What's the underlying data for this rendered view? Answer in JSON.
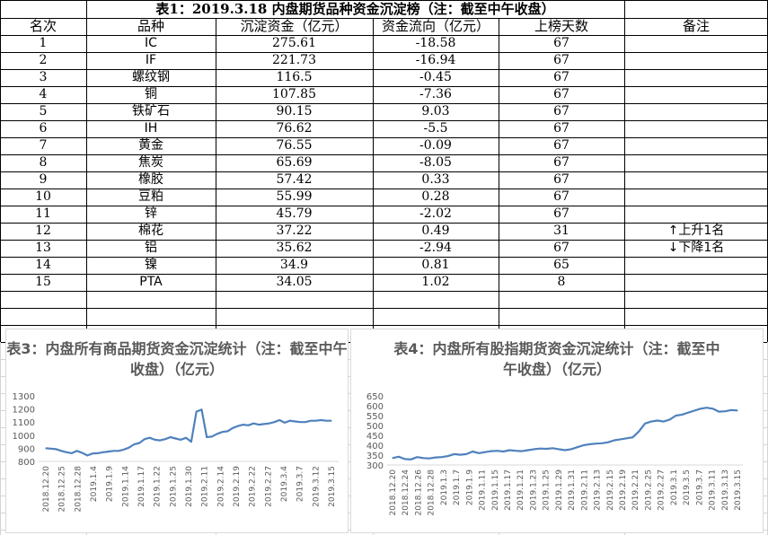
{
  "table": {
    "title": "表1：2019.3.18 内盘期货品种资金沉淀榜（注：截至中午收盘）",
    "headers": [
      "名次",
      "品种",
      "沉淀资金（亿元）",
      "资金流向（亿元）",
      "上榜天数",
      "备注"
    ],
    "rows": [
      {
        "rank": "1",
        "name": "IC",
        "amount": "275.61",
        "flow": "-18.58",
        "days": "67",
        "note": ""
      },
      {
        "rank": "2",
        "name": "IF",
        "amount": "221.73",
        "flow": "-16.94",
        "days": "67",
        "note": ""
      },
      {
        "rank": "3",
        "name": "螺纹钢",
        "amount": "116.5",
        "flow": "-0.45",
        "days": "67",
        "note": ""
      },
      {
        "rank": "4",
        "name": "铜",
        "amount": "107.85",
        "flow": "-7.36",
        "days": "67",
        "note": ""
      },
      {
        "rank": "5",
        "name": "铁矿石",
        "amount": "90.15",
        "flow": "9.03",
        "days": "67",
        "note": ""
      },
      {
        "rank": "6",
        "name": "IH",
        "amount": "76.62",
        "flow": "-5.5",
        "days": "67",
        "note": ""
      },
      {
        "rank": "7",
        "name": "黄金",
        "amount": "76.55",
        "flow": "-0.09",
        "days": "67",
        "note": ""
      },
      {
        "rank": "8",
        "name": "焦炭",
        "amount": "65.69",
        "flow": "-8.05",
        "days": "67",
        "note": ""
      },
      {
        "rank": "9",
        "name": "橡胶",
        "amount": "57.42",
        "flow": "0.33",
        "days": "67",
        "note": ""
      },
      {
        "rank": "10",
        "name": "豆粕",
        "amount": "55.99",
        "flow": "0.28",
        "days": "67",
        "note": ""
      },
      {
        "rank": "11",
        "name": "锌",
        "amount": "45.79",
        "flow": "-2.02",
        "days": "67",
        "note": ""
      },
      {
        "rank": "12",
        "name": "棉花",
        "amount": "37.22",
        "flow": "0.49",
        "days": "31",
        "note": "↑上升1名"
      },
      {
        "rank": "13",
        "name": "铝",
        "amount": "35.62",
        "flow": "-2.94",
        "days": "67",
        "note": "↓下降1名"
      },
      {
        "rank": "14",
        "name": "镍",
        "amount": "34.9",
        "flow": "0.81",
        "days": "65",
        "note": ""
      },
      {
        "rank": "15",
        "name": "PTA",
        "amount": "34.05",
        "flow": "1.02",
        "days": "8",
        "note": ""
      }
    ]
  },
  "colors": {
    "line": "#4f81bd",
    "axis_text": "#595959",
    "title_text": "#595959"
  },
  "chart_data": [
    {
      "type": "line",
      "title": "表3：内盘所有商品期货资金沉淀统计（注：截至中午收盘）（亿元）",
      "ylim": [
        800,
        1300
      ],
      "yticks": [
        "800",
        "900",
        "1000",
        "1100",
        "1200",
        "1300"
      ],
      "grid": false,
      "xtick_labels": [
        "2018.12.20",
        "2018.12.25",
        "2018.12.28",
        "2019.1.4",
        "2019.1.9",
        "2019.1.14",
        "2019.1.17",
        "2019.1.22",
        "2019.1.25",
        "2019.1.30",
        "2019.2.11",
        "2019.2.14",
        "2019.2.19",
        "2019.2.22",
        "2019.2.27",
        "2019.3.4",
        "2019.3.7",
        "2019.3.12",
        "2019.3.15"
      ],
      "series": [
        {
          "values": [
            900,
            897,
            893,
            880,
            870,
            862,
            880,
            865,
            845,
            860,
            862,
            870,
            875,
            880,
            880,
            890,
            905,
            930,
            940,
            970,
            980,
            965,
            960,
            970,
            985,
            975,
            965,
            980,
            950,
            1180,
            1195,
            985,
            990,
            1010,
            1025,
            1030,
            1055,
            1070,
            1080,
            1075,
            1090,
            1080,
            1085,
            1090,
            1100,
            1115,
            1095,
            1110,
            1105,
            1100,
            1100,
            1110,
            1110,
            1115,
            1110,
            1110
          ]
        }
      ]
    },
    {
      "type": "line",
      "title": "表4：内盘所有股指期货资金沉淀统计（注：截至中午收盘）（亿元）",
      "ylim": [
        300,
        650
      ],
      "yticks": [
        "300",
        "350",
        "400",
        "450",
        "500",
        "550",
        "600",
        "650"
      ],
      "grid": false,
      "xtick_labels": [
        "2018.12.20",
        "2018.12.24",
        "2018.12.26",
        "2018.12.28",
        "2019.1.3",
        "2019.1.7",
        "2019.1.9",
        "2019.1.11",
        "2019.1.15",
        "2019.1.17",
        "2019.1.21",
        "2019.1.23",
        "2019.1.25",
        "2019.1.29",
        "2019.1.31",
        "2019.2.11",
        "2019.2.13",
        "2019.2.15",
        "2019.2.19",
        "2019.2.21",
        "2019.2.25",
        "2019.2.27",
        "2019.3.1",
        "2019.3.5",
        "2019.3.7",
        "2019.3.11",
        "2019.3.13",
        "2019.3.15"
      ],
      "series": [
        {
          "values": [
            335,
            342,
            330,
            328,
            340,
            335,
            333,
            338,
            340,
            345,
            355,
            352,
            355,
            368,
            360,
            365,
            370,
            372,
            368,
            375,
            372,
            370,
            375,
            380,
            383,
            382,
            385,
            380,
            375,
            380,
            390,
            400,
            405,
            408,
            410,
            415,
            425,
            430,
            435,
            440,
            470,
            510,
            520,
            525,
            520,
            530,
            550,
            555,
            565,
            575,
            585,
            590,
            585,
            570,
            572,
            578,
            576
          ]
        }
      ]
    }
  ]
}
